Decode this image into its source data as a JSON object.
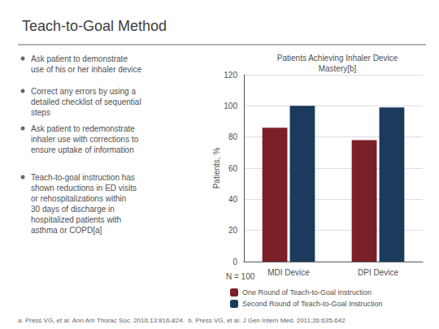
{
  "chart_data": {
    "type": "bar",
    "title": "Teach-to-Goal Method",
    "subtitle": "Patients Achieving Inhaler Device\nMastery[b]",
    "bullet_points": [
      "Ask patient to demonstrate\nuse of his or her inhaler device",
      "Correct any errors by using a\ndetailed checklist of sequential\nsteps",
      "Ask patient to redemonstrate\ninhaler use with corrections to\nensure uptake of information",
      "Teach-to-goal instruction has\nshown reductions in ED visits\nor rehospitalizations within\n30 days of discharge in\nhospitalized patients with\nasthma or COPD[a]"
    ],
    "categories": [
      "MDI Device",
      "DPI Device"
    ],
    "series": [
      {
        "name": "One Round of Teach-to-Goal Instruction",
        "color": "#7B2027",
        "values": [
          86,
          78
        ]
      },
      {
        "name": "Second Round of Teach-to-Goal Instruction",
        "color": "#1B3A5C",
        "values": [
          100,
          99
        ]
      }
    ],
    "ylabel": "Patients, %",
    "ylim": [
      0,
      120
    ],
    "yticks": [
      0,
      20,
      40,
      60,
      80,
      100,
      120
    ],
    "grid": true,
    "legend": "bottom",
    "n_label": "N = 100",
    "footnote": "a. Press VG, et al. Ann Am Thorac Soc. 2016;13:816-824.  b. Press VG, et al. J Gen Intern Med. 2011;26:635-642"
  }
}
